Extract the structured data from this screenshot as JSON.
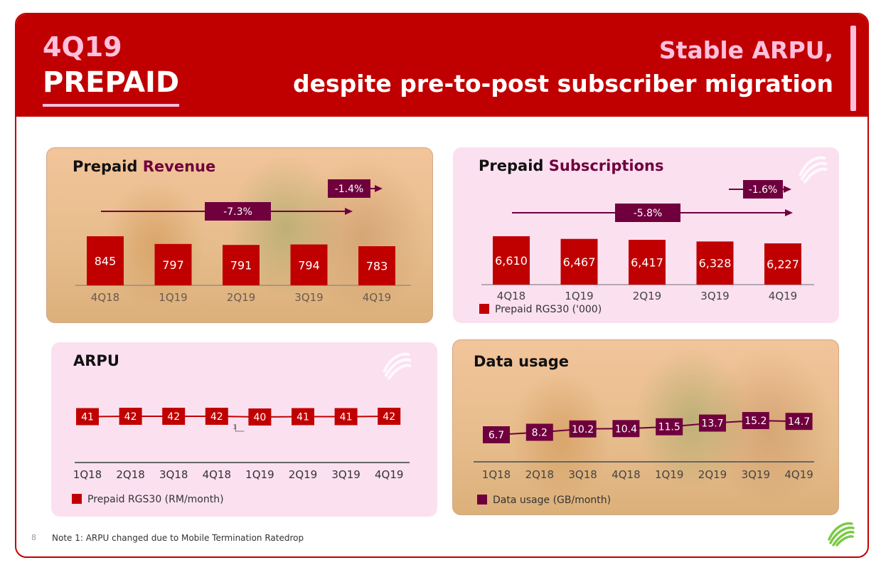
{
  "header": {
    "quarter": "4Q19",
    "segment": "PREPAID",
    "headline_line1": "Stable ARPU,",
    "headline_line2": "despite pre-to-post subscriber migration"
  },
  "panels": {
    "revenue": {
      "title_main": "Prepaid",
      "title_accent": "Revenue"
    },
    "subs": {
      "title_main": "Prepaid",
      "title_accent": "Subscriptions",
      "legend": "Prepaid RGS30 ('000)"
    },
    "arpu": {
      "title_main": "ARPU",
      "legend": "Prepaid RGS30 (RM/month)"
    },
    "data": {
      "title_main": "Data usage",
      "legend": "Data usage (GB/month)"
    }
  },
  "footer": {
    "page_number": "8",
    "note": "Note 1: ARPU changed due to Mobile Termination Ratedrop"
  },
  "colors": {
    "brand_red": "#c00000",
    "plum": "#6f003d",
    "pink_accent": "#ffc0dd",
    "panel_pink": "#fbe0f0",
    "lime": "#7ac943"
  },
  "chart_data": [
    {
      "type": "bar",
      "id": "revenue",
      "categories": [
        "4Q18",
        "1Q19",
        "2Q19",
        "3Q19",
        "4Q19"
      ],
      "values": [
        845,
        797,
        791,
        794,
        783
      ],
      "annotations": [
        {
          "label": "-7.3%",
          "from": "4Q18",
          "to": "4Q19"
        },
        {
          "label": "-1.4%",
          "from": "3Q19",
          "to": "4Q19"
        }
      ]
    },
    {
      "type": "bar",
      "id": "subs",
      "categories": [
        "4Q18",
        "1Q19",
        "2Q19",
        "3Q19",
        "4Q19"
      ],
      "values": [
        6610,
        6467,
        6417,
        6328,
        6227
      ],
      "value_labels": [
        "6,610",
        "6,467",
        "6,417",
        "6,328",
        "6,227"
      ],
      "series": [
        {
          "name": "Prepaid RGS30 ('000)",
          "values": [
            6610,
            6467,
            6417,
            6328,
            6227
          ]
        }
      ],
      "annotations": [
        {
          "label": "-5.8%",
          "from": "4Q18",
          "to": "4Q19"
        },
        {
          "label": "-1.6%",
          "from": "3Q19",
          "to": "4Q19"
        }
      ]
    },
    {
      "type": "line",
      "id": "arpu",
      "categories": [
        "1Q18",
        "2Q18",
        "3Q18",
        "4Q18",
        "1Q19",
        "2Q19",
        "3Q19",
        "4Q19"
      ],
      "values": [
        41,
        42,
        42,
        42,
        40,
        41,
        41,
        42
      ],
      "series": [
        {
          "name": "Prepaid RGS30 (RM/month)",
          "values": [
            41,
            42,
            42,
            42,
            40,
            41,
            41,
            42
          ]
        }
      ],
      "note_marker": {
        "at": "1Q19",
        "label": "1"
      }
    },
    {
      "type": "line",
      "id": "data",
      "categories": [
        "1Q18",
        "2Q18",
        "3Q18",
        "4Q18",
        "1Q19",
        "2Q19",
        "3Q19",
        "4Q19"
      ],
      "values": [
        6.7,
        8.2,
        10.2,
        10.4,
        11.5,
        13.7,
        15.2,
        14.7
      ],
      "series": [
        {
          "name": "Data usage (GB/month)",
          "values": [
            6.7,
            8.2,
            10.2,
            10.4,
            11.5,
            13.7,
            15.2,
            14.7
          ]
        }
      ]
    }
  ]
}
